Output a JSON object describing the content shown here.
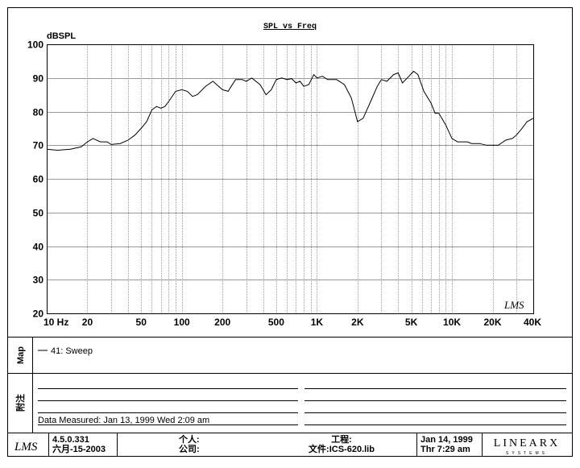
{
  "chart_data": {
    "type": "line",
    "title": "SPL vs Freq",
    "ylabel": "dBSPL",
    "watermark": "LMS",
    "log_x": true,
    "grid": true,
    "xlim": [
      10,
      40000
    ],
    "ylim": [
      20,
      100
    ],
    "xticks": [
      {
        "value": 10,
        "label": "10 Hz"
      },
      20,
      50,
      100,
      200,
      500,
      {
        "value": 1000,
        "label": "1K"
      },
      {
        "value": 2000,
        "label": "2K"
      },
      {
        "value": 5000,
        "label": "5K"
      },
      {
        "value": 10000,
        "label": "10K"
      },
      {
        "value": 20000,
        "label": "20K"
      },
      {
        "value": 40000,
        "label": "40K"
      }
    ],
    "xgrid": [
      10,
      20,
      30,
      40,
      50,
      60,
      70,
      80,
      90,
      100,
      200,
      300,
      400,
      500,
      600,
      700,
      800,
      900,
      1000,
      2000,
      3000,
      4000,
      5000,
      6000,
      7000,
      8000,
      9000,
      10000,
      20000,
      30000,
      40000
    ],
    "yticks": [
      20,
      30,
      40,
      50,
      60,
      70,
      80,
      90,
      100
    ],
    "x": [
      10,
      12,
      15,
      18,
      20,
      22,
      25,
      28,
      30,
      35,
      40,
      45,
      50,
      55,
      60,
      65,
      70,
      75,
      80,
      90,
      100,
      110,
      120,
      130,
      150,
      170,
      200,
      220,
      250,
      280,
      300,
      330,
      380,
      420,
      460,
      500,
      550,
      600,
      650,
      700,
      750,
      800,
      870,
      950,
      1000,
      1100,
      1200,
      1400,
      1600,
      1800,
      2000,
      2200,
      2500,
      2800,
      3000,
      3300,
      3700,
      4000,
      4300,
      4800,
      5200,
      5600,
      6200,
      7000,
      7500,
      8000,
      9000,
      10000,
      11000,
      13000,
      14000,
      16000,
      18000,
      20000,
      22000,
      25000,
      28000,
      30000,
      33000,
      36000,
      40000
    ],
    "series": [
      {
        "name": "41: Sweep",
        "color": "#000000",
        "values": [
          68.8,
          68.5,
          68.8,
          69.5,
          71,
          72,
          71,
          71,
          70.2,
          70.5,
          71.5,
          73,
          75,
          77,
          80.5,
          81.5,
          81,
          81.5,
          83,
          86,
          86.5,
          86,
          84.5,
          85,
          87.5,
          89,
          86.5,
          86,
          89.5,
          89.5,
          89,
          90,
          88,
          85,
          86.5,
          89.5,
          90,
          89.5,
          89.8,
          88.5,
          89,
          87.5,
          88,
          91,
          90,
          90.5,
          89.5,
          89.5,
          88,
          84,
          77,
          78,
          83,
          87.5,
          89.5,
          89,
          91,
          91.5,
          88.5,
          90.5,
          92,
          91,
          86,
          82.5,
          79.5,
          79.5,
          76,
          72,
          71,
          71,
          70.5,
          70.5,
          70,
          70,
          70,
          71.5,
          72,
          73,
          75,
          77,
          78
        ]
      }
    ]
  },
  "panel": {
    "map_label": "Map",
    "notes_label": "附注",
    "measured": "Data Measured: Jan 13, 1999  Wed  2:09 am"
  },
  "footer": {
    "logo": "LMS",
    "version": "4.5.0.331",
    "date": "六月-15-2003",
    "personal": "个人:",
    "company": "公司:",
    "project": "工程:",
    "file": "文件:ICS-620.lib",
    "print_date": "Jan 14, 1999",
    "print_time": "Thr  7:29 am",
    "brand": "LINEARX",
    "brand_sub": "SYSTEMS"
  }
}
